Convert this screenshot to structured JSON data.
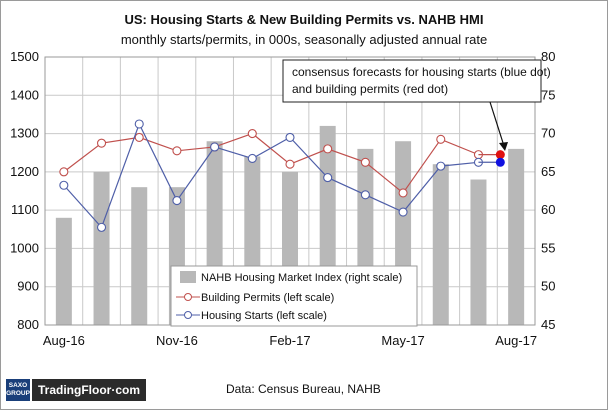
{
  "chart_data": {
    "type": "bar+line",
    "title": "US: Housing Starts & New Building Permits vs. NAHB HMI",
    "subtitle": "monthly starts/permits,  in 000s, seasonally adjusted annual rate",
    "x_tick_labels": [
      "Aug-16",
      "Nov-16",
      "Feb-17",
      "May-17",
      "Aug-17"
    ],
    "x_months": [
      "Aug-16",
      "Sep-16",
      "Oct-16",
      "Nov-16",
      "Dec-16",
      "Jan-17",
      "Feb-17",
      "Mar-17",
      "Apr-17",
      "May-17",
      "Jun-17",
      "Jul-17",
      "Aug-17"
    ],
    "left_axis": {
      "min": 800,
      "max": 1500,
      "step": 100
    },
    "right_axis": {
      "min": 45,
      "max": 80,
      "step": 5
    },
    "series": [
      {
        "name": "NAHB Housing Market Index (right scale)",
        "kind": "bar",
        "axis": "right",
        "values": [
          59,
          65,
          63,
          63,
          69,
          67,
          65,
          71,
          68,
          69,
          66,
          64,
          68
        ]
      },
      {
        "name": "Building Permits (left scale)",
        "kind": "line",
        "axis": "left",
        "values": [
          1200,
          1275,
          1290,
          1255,
          1265,
          1300,
          1220,
          1260,
          1225,
          1145,
          1285,
          1245,
          null
        ]
      },
      {
        "name": "Housing Starts (left scale)",
        "kind": "line",
        "axis": "left",
        "values": [
          1165,
          1055,
          1325,
          1125,
          1265,
          1235,
          1290,
          1185,
          1140,
          1095,
          1215,
          1225,
          null
        ]
      }
    ],
    "forecast_dots": [
      {
        "series": "Building Permits (left scale)",
        "month": "Aug-17",
        "value": 1245,
        "color": "#e01010"
      },
      {
        "series": "Housing Starts (left scale)",
        "month": "Aug-17",
        "value": 1225,
        "color": "#1010e0"
      }
    ],
    "annotation": {
      "lines": [
        "consensus forecasts for housing starts (blue dot)",
        "and building permits (red dot)"
      ]
    },
    "legend": {
      "position": "bottom-center"
    },
    "grid": true
  },
  "colors": {
    "bars": "#b8b8b8",
    "permits": "#c0504d",
    "starts": "#4f5fa8",
    "grid": "#c9c9c9"
  },
  "footer": {
    "source": "Data: Census Bureau,  NAHB",
    "logo_saxo_line1": "SAXO",
    "logo_saxo_line2": "GROUP",
    "logo_text": "TradingFloor·com"
  }
}
